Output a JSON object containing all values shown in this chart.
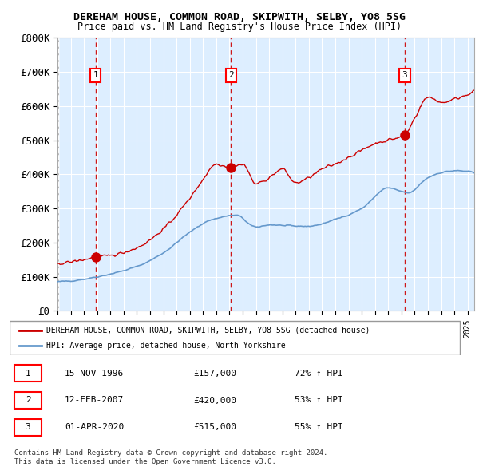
{
  "title1": "DEREHAM HOUSE, COMMON ROAD, SKIPWITH, SELBY, YO8 5SG",
  "title2": "Price paid vs. HM Land Registry's House Price Index (HPI)",
  "xlim": [
    1994,
    2025.5
  ],
  "ylim": [
    0,
    800000
  ],
  "yticks": [
    0,
    100000,
    200000,
    300000,
    400000,
    500000,
    600000,
    700000,
    800000
  ],
  "ytick_labels": [
    "£0",
    "£100K",
    "£200K",
    "£300K",
    "£400K",
    "£500K",
    "£600K",
    "£700K",
    "£800K"
  ],
  "sale1_year": 1996.875,
  "sale1_price": 157000,
  "sale1_date": "15-NOV-1996",
  "sale1_label": "£157,000",
  "sale1_hpi": "72% ↑ HPI",
  "sale2_year": 2007.12,
  "sale2_price": 420000,
  "sale2_date": "12-FEB-2007",
  "sale2_label": "£420,000",
  "sale2_hpi": "53% ↑ HPI",
  "sale3_year": 2020.25,
  "sale3_price": 515000,
  "sale3_date": "01-APR-2020",
  "sale3_label": "£515,000",
  "sale3_hpi": "55% ↑ HPI",
  "red_line_color": "#cc0000",
  "blue_line_color": "#6699cc",
  "bg_color": "#ddeeff",
  "hatch_color": "#cccccc",
  "grid_color": "#ffffff",
  "vline_color": "#cc0000",
  "legend_line1": "DEREHAM HOUSE, COMMON ROAD, SKIPWITH, SELBY, YO8 5SG (detached house)",
  "legend_line2": "HPI: Average price, detached house, North Yorkshire",
  "footnote": "Contains HM Land Registry data © Crown copyright and database right 2024.\nThis data is licensed under the Open Government Licence v3.0."
}
